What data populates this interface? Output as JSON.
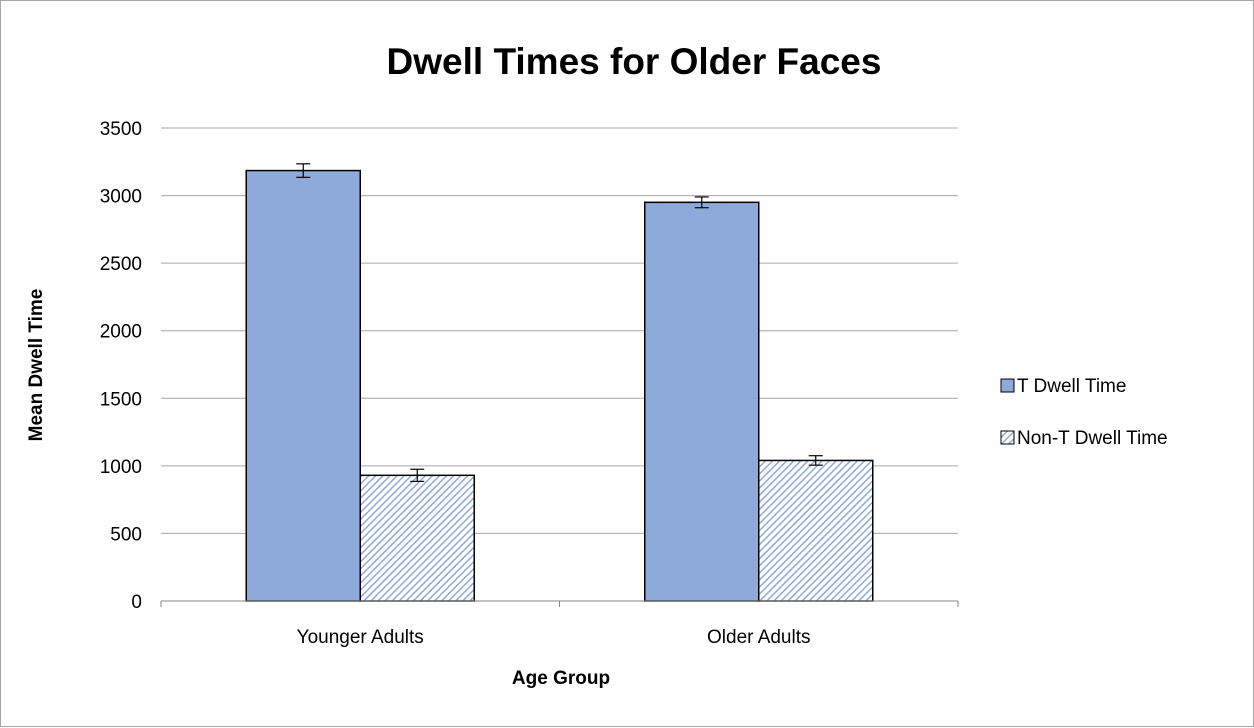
{
  "chart_data": {
    "type": "bar",
    "title": "Dwell Times for Older Faces",
    "xlabel": "Age Group",
    "ylabel": "Mean Dwell Time",
    "categories": [
      "Younger Adults",
      "Older Adults"
    ],
    "series": [
      {
        "name": "T Dwell Time",
        "values": [
          3185,
          2950
        ],
        "errors": [
          50,
          40
        ],
        "color": "#8eaadb",
        "pattern": "solid"
      },
      {
        "name": "Non-T Dwell Time",
        "values": [
          930,
          1040
        ],
        "errors": [
          45,
          35
        ],
        "color": "#8eaadb",
        "pattern": "diagonal-hatch"
      }
    ],
    "ylim": [
      0,
      3500
    ],
    "yticks": [
      0,
      500,
      1000,
      1500,
      2000,
      2500,
      3000,
      3500
    ],
    "ytick_labels": [
      "0",
      "500",
      "1000",
      "1500",
      "2000",
      "2500",
      "3000",
      "3500"
    ],
    "grid": true,
    "legend_position": "right"
  }
}
